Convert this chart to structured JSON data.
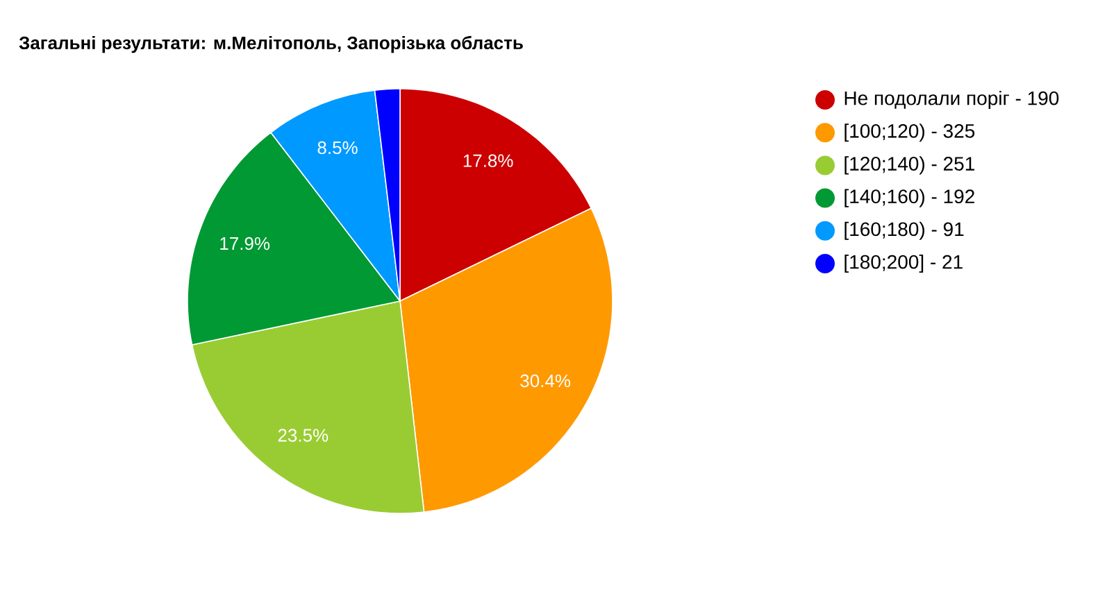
{
  "chart_data": {
    "type": "pie",
    "title": "Загальні результати: м.Мелітополь, Запорізька область",
    "categories": [
      "Не подолали поріг - 190",
      "[100;120) - 325",
      "[120;140) - 251",
      "[140;160) - 192",
      "[160;180) - 91",
      "[180;200] - 21"
    ],
    "values": [
      17.8,
      30.4,
      23.5,
      17.9,
      8.5,
      1.9
    ],
    "colors": [
      "#cc0000",
      "#ff9900",
      "#99cc33",
      "#009933",
      "#0099ff",
      "#0000ff"
    ],
    "value_labels": [
      "17.8%",
      "30.4%",
      "23.5%",
      "17.9%",
      "8.5%",
      null
    ],
    "legend": "right"
  }
}
